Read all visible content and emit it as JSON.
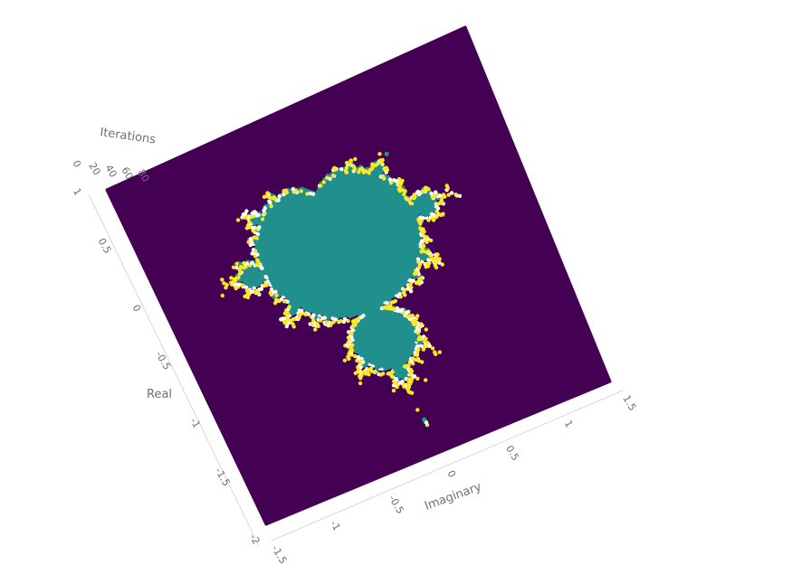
{
  "chart_data": {
    "type": "scatter3d",
    "title": "",
    "axes": {
      "x": {
        "title": "Imaginary",
        "range": [
          -1.5,
          1.5
        ],
        "tick_labels": [
          "-1.5",
          "-1",
          "-0.5",
          "0",
          "0.5",
          "1",
          "1.5"
        ]
      },
      "y": {
        "title": "Real",
        "range": [
          -2,
          1
        ],
        "tick_labels": [
          "-2",
          "-1.5",
          "-1",
          "-0.5",
          "0",
          "0.5",
          "1"
        ]
      },
      "z": {
        "title": "Iterations",
        "range": [
          0,
          100
        ],
        "tick_labels": [
          "0",
          "20",
          "40",
          "60",
          "80"
        ]
      }
    },
    "color_scale": "viridis",
    "color_levels": [
      {
        "iterations": 1,
        "color": "#440154"
      },
      {
        "iterations": 50,
        "color": "#21908d"
      },
      {
        "iterations": 100,
        "color": "#fde725"
      }
    ],
    "set_shape": "mandelbrot",
    "grid": true,
    "legend": "none"
  }
}
